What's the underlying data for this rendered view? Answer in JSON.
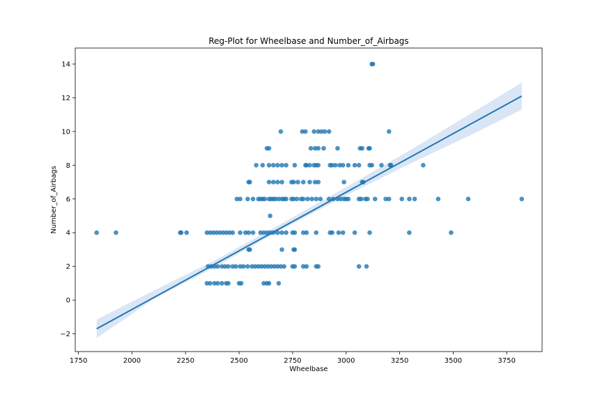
{
  "chart_data": {
    "type": "scatter",
    "title": "Reg-Plot for Wheelbase and Number_of_Airbags",
    "xlabel": "Wheelbase",
    "ylabel": "Number_of_Airbags",
    "xlim": [
      1735,
      3915
    ],
    "ylim": [
      -3.05,
      14.95
    ],
    "xticks": [
      1750,
      2000,
      2250,
      2500,
      2750,
      3000,
      3250,
      3500,
      3750
    ],
    "yticks": [
      -2,
      0,
      2,
      4,
      6,
      8,
      10,
      12,
      14
    ],
    "grid": false,
    "point_color": "#1f77b4",
    "line_color": "#1f77b4",
    "band_color": "#aec7e8",
    "regression": {
      "x_start": 1835,
      "y_start": -1.7,
      "x_end": 3820,
      "y_end": 12.1,
      "ci": [
        {
          "x": 1835,
          "lower": -2.25,
          "upper": -1.15
        },
        {
          "x": 2100,
          "lower": 0.05,
          "upper": 0.55
        },
        {
          "x": 2400,
          "lower": 2.05,
          "upper": 2.45
        },
        {
          "x": 2700,
          "lower": 4.2,
          "upper": 4.55
        },
        {
          "x": 3000,
          "lower": 6.2,
          "upper": 6.7
        },
        {
          "x": 3300,
          "lower": 8.1,
          "upper": 8.9
        },
        {
          "x": 3600,
          "lower": 9.9,
          "upper": 11.2
        },
        {
          "x": 3820,
          "lower": 11.3,
          "upper": 12.9
        }
      ]
    },
    "points": {
      "x": [
        1835,
        1925,
        2225,
        2230,
        2255,
        2350,
        2365,
        2380,
        2395,
        2410,
        2425,
        2440,
        2455,
        2470,
        2505,
        2530,
        2545,
        2565,
        2600,
        2615,
        2630,
        2645,
        2660,
        2680,
        2700,
        2720,
        2750,
        2760,
        2800,
        2815,
        2860,
        2925,
        2935,
        2965,
        2985,
        3040,
        3110,
        3295,
        3490,
        2355,
        2370,
        2385,
        2400,
        2420,
        2435,
        2450,
        2470,
        2485,
        2505,
        2520,
        2540,
        2560,
        2575,
        2590,
        2605,
        2620,
        2635,
        2650,
        2665,
        2680,
        2695,
        2710,
        2750,
        2760,
        2800,
        2815,
        2860,
        2870,
        3060,
        3095,
        2350,
        2365,
        2385,
        2400,
        2420,
        2440,
        2450,
        2500,
        2510,
        2615,
        2630,
        2640,
        2685,
        2545,
        2550,
        2700,
        2755,
        2760,
        2645,
        2490,
        2505,
        2540,
        2565,
        2590,
        2600,
        2610,
        2620,
        2640,
        2650,
        2660,
        2670,
        2685,
        2700,
        2710,
        2720,
        2745,
        2755,
        2770,
        2790,
        2800,
        2820,
        2840,
        2860,
        2880,
        2920,
        2940,
        2960,
        2975,
        2990,
        3000,
        3010,
        3060,
        3070,
        3090,
        3100,
        3135,
        3185,
        3200,
        3260,
        3295,
        3320,
        3430,
        3570,
        3820,
        2545,
        2550,
        2640,
        2660,
        2680,
        2700,
        2745,
        2755,
        2775,
        2800,
        2830,
        2855,
        2870,
        2990,
        3075,
        3080,
        2580,
        2610,
        2640,
        2660,
        2680,
        2700,
        2720,
        2760,
        2810,
        2815,
        2830,
        2850,
        2860,
        2870,
        2925,
        2935,
        2950,
        2970,
        2985,
        3010,
        3040,
        3060,
        3110,
        3120,
        3165,
        3205,
        3210,
        3360,
        2630,
        2640,
        2835,
        2855,
        2870,
        2895,
        2960,
        3065,
        3075,
        3105,
        3110,
        2695,
        2795,
        2810,
        2850,
        2870,
        2885,
        2900,
        2920,
        3200,
        3120,
        3125
      ],
      "y": [
        4,
        4,
        4,
        4,
        4,
        4,
        4,
        4,
        4,
        4,
        4,
        4,
        4,
        4,
        4,
        4,
        4,
        4,
        4,
        4,
        4,
        4,
        4,
        4,
        4,
        4,
        4,
        4,
        4,
        4,
        4,
        4,
        4,
        4,
        4,
        4,
        4,
        4,
        4,
        2,
        2,
        2,
        2,
        2,
        2,
        2,
        2,
        2,
        2,
        2,
        2,
        2,
        2,
        2,
        2,
        2,
        2,
        2,
        2,
        2,
        2,
        2,
        2,
        2,
        2,
        2,
        2,
        2,
        2,
        2,
        1,
        1,
        1,
        1,
        1,
        1,
        1,
        1,
        1,
        1,
        1,
        1,
        1,
        3,
        3,
        3,
        3,
        3,
        5,
        6,
        6,
        6,
        6,
        6,
        6,
        6,
        6,
        6,
        6,
        6,
        6,
        6,
        6,
        6,
        6,
        6,
        6,
        6,
        6,
        6,
        6,
        6,
        6,
        6,
        6,
        6,
        6,
        6,
        6,
        6,
        6,
        6,
        6,
        6,
        6,
        6,
        6,
        6,
        6,
        6,
        6,
        6,
        6,
        6,
        7,
        7,
        7,
        7,
        7,
        7,
        7,
        7,
        7,
        7,
        7,
        7,
        7,
        7,
        7,
        7,
        8,
        8,
        8,
        8,
        8,
        8,
        8,
        8,
        8,
        8,
        8,
        8,
        8,
        8,
        8,
        8,
        8,
        8,
        8,
        8,
        8,
        8,
        8,
        8,
        8,
        8,
        8,
        8,
        9,
        9,
        9,
        9,
        9,
        9,
        9,
        9,
        9,
        9,
        9,
        10,
        10,
        10,
        10,
        10,
        10,
        10,
        10,
        10,
        14,
        14
      ]
    }
  }
}
